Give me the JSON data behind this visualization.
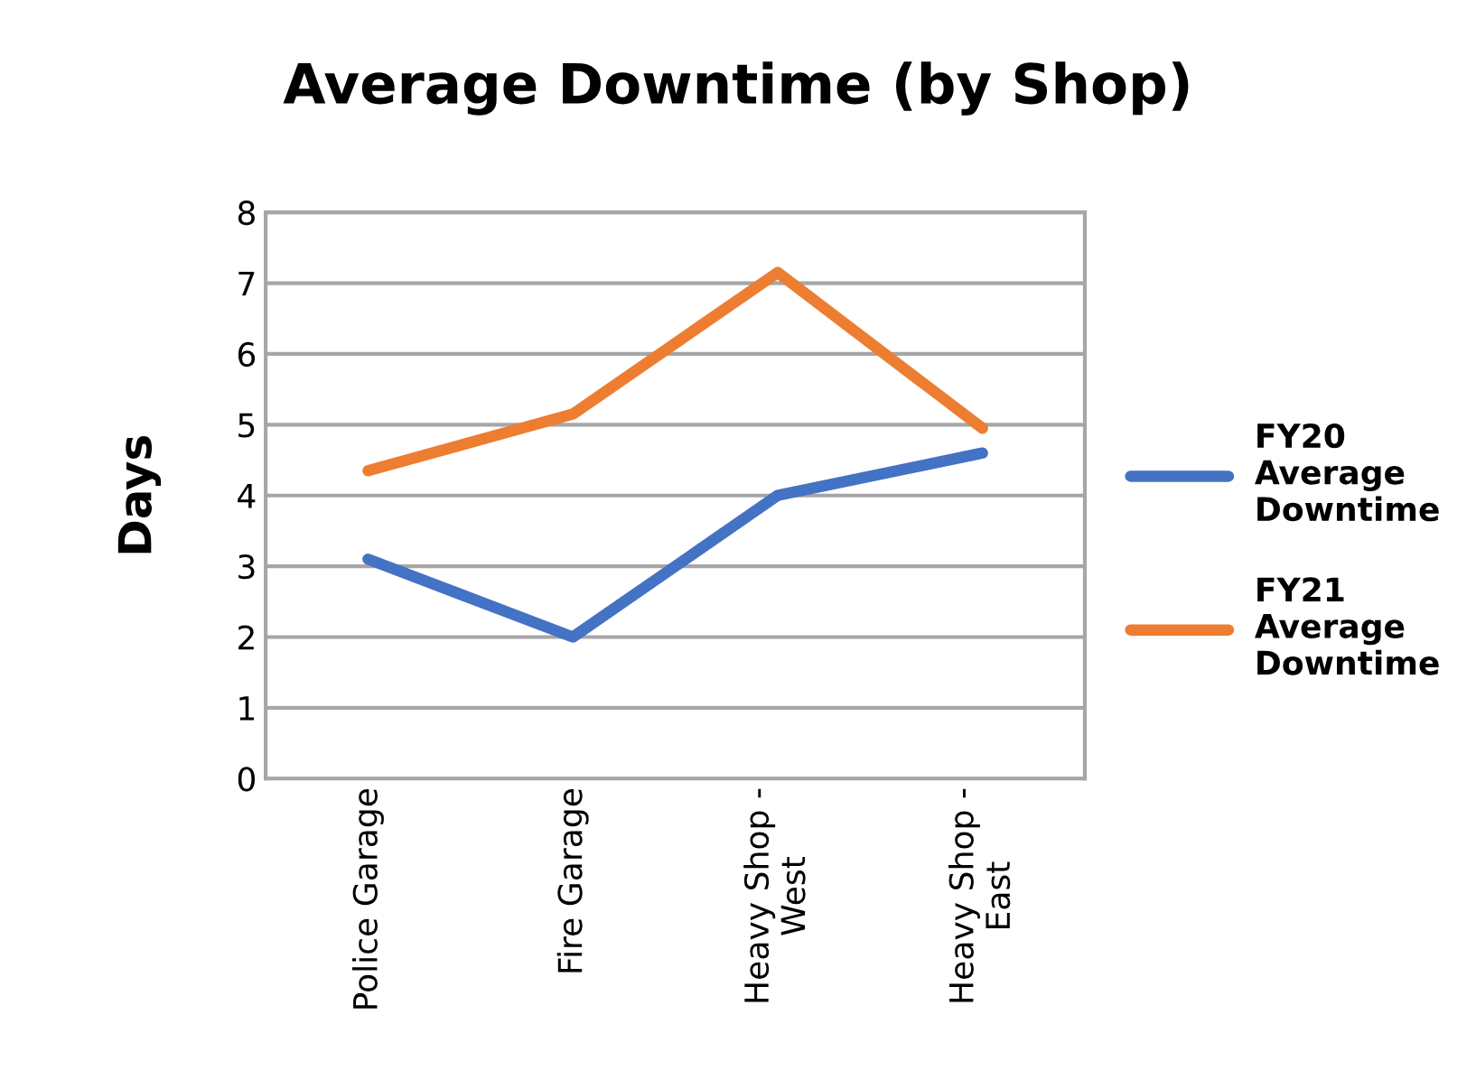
{
  "chart_data": {
    "type": "line",
    "title": "Average Downtime (by Shop)",
    "ylabel": "Days",
    "categories": [
      "Police Garage",
      "Fire Garage",
      "Heavy Shop -\nWest",
      "Heavy Shop -\nEast"
    ],
    "series": [
      {
        "name": "FY20\nAverage\nDowntime",
        "color": "#4472c4",
        "values": [
          3.1,
          2.0,
          4.0,
          4.6
        ]
      },
      {
        "name": "FY21\nAverage\nDowntime",
        "color": "#ed7d31",
        "values": [
          4.35,
          5.15,
          7.15,
          4.95
        ]
      }
    ],
    "ylim": [
      0,
      8
    ],
    "yticks": [
      0,
      1,
      2,
      3,
      4,
      5,
      6,
      7,
      8
    ],
    "grid": "y",
    "legend": "right",
    "marker": "none",
    "line_style": "solid"
  }
}
